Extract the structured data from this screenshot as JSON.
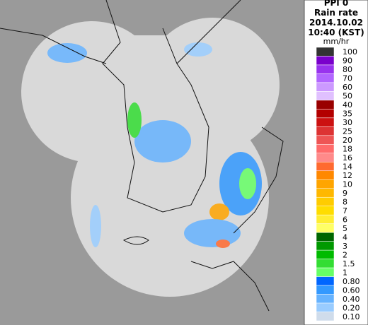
{
  "legend": {
    "title": [
      "PPI 0",
      "Rain rate",
      "2014.10.02",
      "10:40 (KST)"
    ],
    "unit": "mm/hr",
    "levels": [
      {
        "label": "100",
        "color": "#333333"
      },
      {
        "label": "90",
        "color": "#7a00cc"
      },
      {
        "label": "80",
        "color": "#9933ee"
      },
      {
        "label": "70",
        "color": "#b266ff"
      },
      {
        "label": "60",
        "color": "#cc99ff"
      },
      {
        "label": "50",
        "color": "#e0c0ff"
      },
      {
        "label": "40",
        "color": "#990000"
      },
      {
        "label": "35",
        "color": "#b30000"
      },
      {
        "label": "30",
        "color": "#cc1111"
      },
      {
        "label": "25",
        "color": "#dd3333"
      },
      {
        "label": "20",
        "color": "#ee5555"
      },
      {
        "label": "18",
        "color": "#ff6b6b"
      },
      {
        "label": "16",
        "color": "#ff8a8a"
      },
      {
        "label": "14",
        "color": "#ff6a30"
      },
      {
        "label": "12",
        "color": "#ff8800"
      },
      {
        "label": "10",
        "color": "#ffa500"
      },
      {
        "label": "9",
        "color": "#ffb800"
      },
      {
        "label": "8",
        "color": "#ffcc00"
      },
      {
        "label": "7",
        "color": "#ffdd00"
      },
      {
        "label": "6",
        "color": "#ffee33"
      },
      {
        "label": "5",
        "color": "#ffff66"
      },
      {
        "label": "4",
        "color": "#006600"
      },
      {
        "label": "3",
        "color": "#009900"
      },
      {
        "label": "2",
        "color": "#00bb00"
      },
      {
        "label": "1.5",
        "color": "#33dd33"
      },
      {
        "label": "1",
        "color": "#66ff66"
      },
      {
        "label": "0.80",
        "color": "#0066ff"
      },
      {
        "label": "0.60",
        "color": "#3399ff"
      },
      {
        "label": "0.40",
        "color": "#66b3ff"
      },
      {
        "label": "0.20",
        "color": "#99ccff"
      },
      {
        "label": "0.10",
        "color": "#cfdceb"
      }
    ]
  }
}
